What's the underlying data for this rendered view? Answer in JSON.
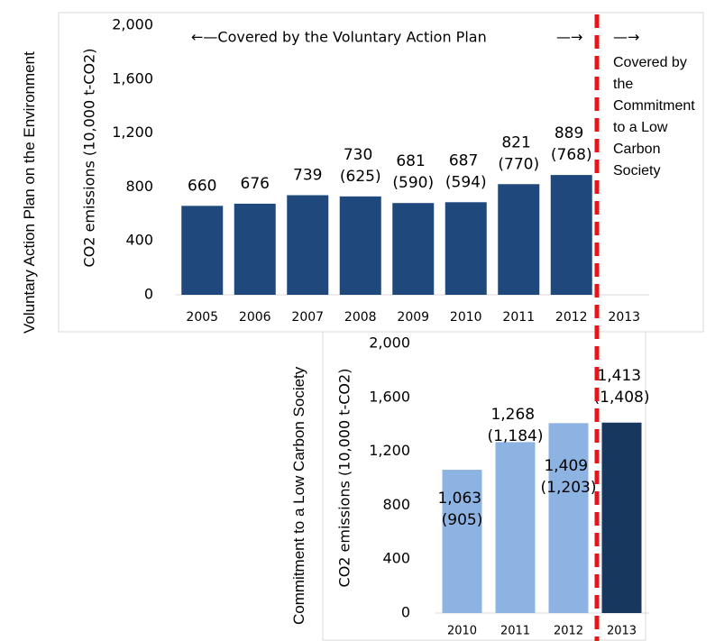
{
  "chart_data": [
    {
      "type": "bar",
      "side_label": "Voluntary Action Plan on the Environment",
      "y_axis_label": "CO2 emissions (10,000 t-CO2)",
      "categories": [
        "2005",
        "2006",
        "2007",
        "2008",
        "2009",
        "2010",
        "2011",
        "2012",
        "2013"
      ],
      "values": [
        660,
        676,
        739,
        730,
        681,
        687,
        821,
        889,
        null
      ],
      "value_labels": [
        "660",
        "676",
        "739",
        "730 (625)",
        "681 (590)",
        "687 (594)",
        "821 (770)",
        "889 (768)",
        null
      ],
      "colors": [
        "#1f497d",
        "#1f497d",
        "#1f497d",
        "#1f497d",
        "#1f497d",
        "#1f497d",
        "#1f497d",
        "#1f497d",
        "#1f497d"
      ],
      "ylim": [
        0,
        2000
      ],
      "yticks": [
        0,
        400,
        800,
        {
          "value": 1200,
          "label": "1,200"
        },
        {
          "value": 1600,
          "label": "1,600"
        },
        {
          "value": 2000,
          "label": "2,000"
        }
      ],
      "annotations": [
        "←—Covered by the Voluntary Action Plan",
        "—→",
        "—→",
        "Covered by the Commitment to a Low Carbon Society"
      ]
    },
    {
      "type": "bar",
      "side_label": "Commitment to a Low Carbon Society",
      "y_axis_label": "CO2 emissions (10,000 t-CO2)",
      "categories": [
        "2010",
        "2011",
        "2012",
        "2013"
      ],
      "values": [
        1063,
        1268,
        1409,
        1413
      ],
      "value_labels": [
        "1,063 (905)",
        "1,268 (1,184)",
        "1,409 (1,203)",
        "1,413 (1,408)"
      ],
      "colors": [
        "#8db3e2",
        "#8db3e2",
        "#8db3e2",
        "#17375e"
      ],
      "ylim": [
        0,
        2000
      ],
      "yticks": [
        0,
        400,
        800,
        {
          "value": 1200,
          "label": "1,200"
        },
        {
          "value": 1600,
          "label": "1,600"
        },
        {
          "value": 2000,
          "label": "2,000"
        }
      ]
    }
  ]
}
